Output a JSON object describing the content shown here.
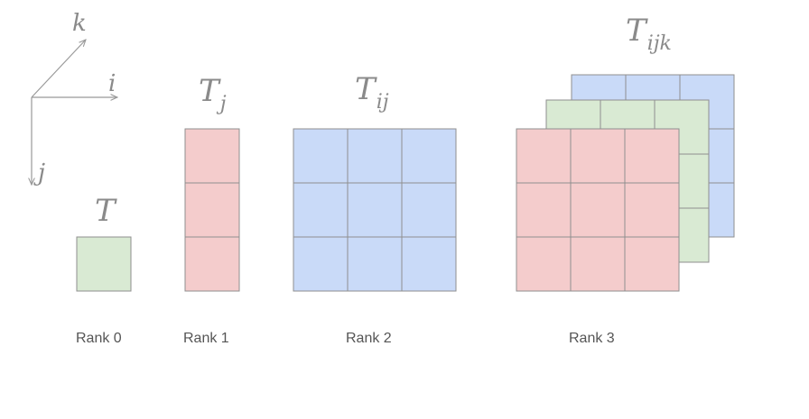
{
  "colors": {
    "green": "#d9ead3",
    "red": "#f4cccc",
    "blue": "#c9daf8",
    "grid": "#8f8f8f",
    "axis": "#999999"
  },
  "axes": {
    "k": "k",
    "i": "i",
    "j": "j"
  },
  "tensors": [
    {
      "symbol": "T",
      "subscript": "",
      "rank_label": "Rank 0",
      "color": "green",
      "shape": "1x1"
    },
    {
      "symbol": "T",
      "subscript": "j",
      "rank_label": "Rank 1",
      "color": "red",
      "shape": "1x3"
    },
    {
      "symbol": "T",
      "subscript": "ij",
      "rank_label": "Rank 2",
      "color": "blue",
      "shape": "3x3"
    },
    {
      "symbol": "T",
      "subscript": "ijk",
      "rank_label": "Rank 3",
      "layer_colors": [
        "blue",
        "green",
        "red"
      ],
      "shape": "3x3x3"
    }
  ]
}
